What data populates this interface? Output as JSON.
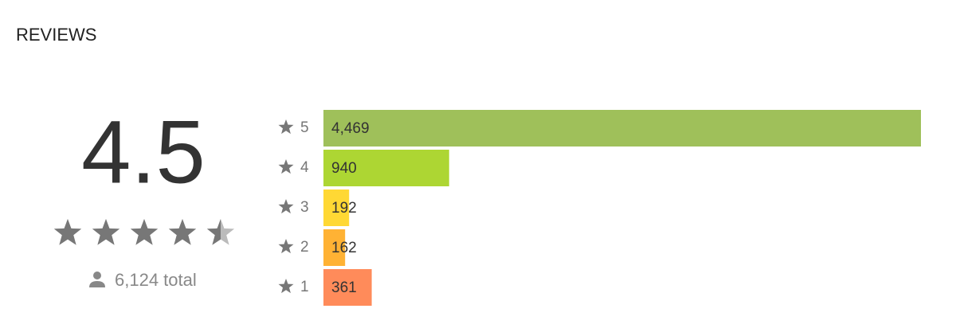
{
  "header": {
    "title": "REVIEWS"
  },
  "rating": {
    "score": 4.5,
    "total": "6,124 total"
  },
  "chart_data": {
    "type": "bar",
    "categories": [
      "5",
      "4",
      "3",
      "2",
      "1"
    ],
    "values": [
      4469,
      940,
      192,
      162,
      361
    ],
    "value_labels": [
      "4,469",
      "940",
      "192",
      "162",
      "361"
    ],
    "colors": [
      "#9fc05a",
      "#add633",
      "#ffd834",
      "#ffb234",
      "#ff8b5a"
    ]
  }
}
